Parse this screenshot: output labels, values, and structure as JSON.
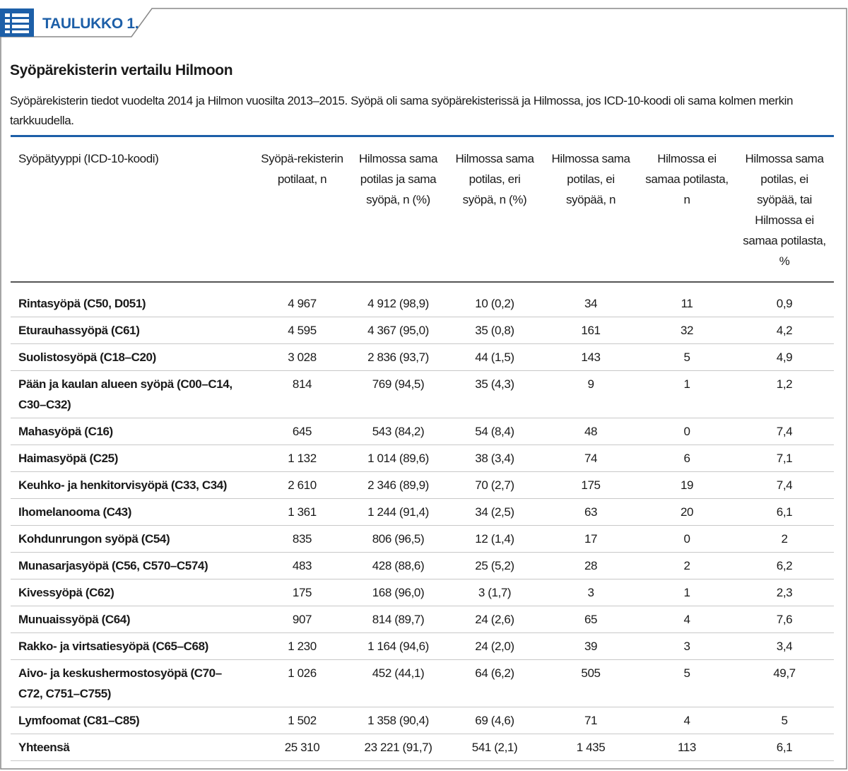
{
  "header": {
    "label": "TAULUKKO 1.",
    "title": "Syöpärekisterin vertailu Hilmoon",
    "description": "Syöpärekisterin tiedot vuodelta 2014 ja Hilmon vuosilta 2013–2015. Syöpä oli sama syöpärekisterissä ja Hilmossa, jos ICD-10-koodi oli sama kolmen merkin tarkkuudella."
  },
  "table": {
    "columns": [
      "Syöpätyyppi (ICD-10-koodi)",
      "Syöpä-rekisterin potilaat, n",
      "Hilmossa sama potilas ja sama syöpä, n (%)",
      "Hilmossa sama potilas, eri syöpä, n (%)",
      "Hilmossa sama potilas, ei syöpää, n",
      "Hilmossa ei samaa potilasta, n",
      "Hilmossa sama potilas, ei syöpää, tai Hilmossa ei samaa potilasta, %"
    ],
    "rows": [
      [
        "Rintasyöpä (C50, D051)",
        "4 967",
        "4 912 (98,9)",
        "10 (0,2)",
        "34",
        "11",
        "0,9"
      ],
      [
        "Eturauhassyöpä (C61)",
        "4 595",
        "4 367 (95,0)",
        "35 (0,8)",
        "161",
        "32",
        "4,2"
      ],
      [
        "Suolistosyöpä (C18–C20)",
        "3 028",
        "2 836 (93,7)",
        "44 (1,5)",
        "143",
        "5",
        "4,9"
      ],
      [
        "Pään ja kaulan alueen syöpä (C00–C14, C30–C32)",
        "814",
        "769 (94,5)",
        "35 (4,3)",
        "9",
        "1",
        "1,2"
      ],
      [
        "Mahasyöpä (C16)",
        "645",
        "543 (84,2)",
        "54 (8,4)",
        "48",
        "0",
        "7,4"
      ],
      [
        "Haimasyöpä (C25)",
        "1 132",
        "1 014 (89,6)",
        "38 (3,4)",
        "74",
        "6",
        "7,1"
      ],
      [
        "Keuhko- ja henkitorvisyöpä (C33, C34)",
        "2 610",
        "2 346 (89,9)",
        "70 (2,7)",
        "175",
        "19",
        "7,4"
      ],
      [
        "Ihomelanooma (C43)",
        "1 361",
        "1 244 (91,4)",
        "34 (2,5)",
        "63",
        "20",
        "6,1"
      ],
      [
        "Kohdunrungon syöpä (C54)",
        "835",
        "806 (96,5)",
        "12 (1,4)",
        "17",
        "0",
        "2"
      ],
      [
        "Munasarjasyöpä (C56, C570–C574)",
        "483",
        "428 (88,6)",
        "25 (5,2)",
        "28",
        "2",
        "6,2"
      ],
      [
        "Kivessyöpä (C62)",
        "175",
        "168 (96,0)",
        "3 (1,7)",
        "3",
        "1",
        "2,3"
      ],
      [
        "Munuaissyöpä (C64)",
        "907",
        "814 (89,7)",
        "24 (2,6)",
        "65",
        "4",
        "7,6"
      ],
      [
        "Rakko- ja virtsatiesyöpä (C65–C68)",
        "1 230",
        "1 164 (94,6)",
        "24 (2,0)",
        "39",
        "3",
        "3,4"
      ],
      [
        "Aivo- ja keskushermostosyöpä (C70–C72, C751–C755)",
        "1 026",
        "452 (44,1)",
        "64 (6,2)",
        "505",
        "5",
        "49,7"
      ],
      [
        "Lymfoomat (C81–C85)",
        "1 502",
        "1 358 (90,4)",
        "69 (4,6)",
        "71",
        "4",
        "5"
      ],
      [
        "Yhteensä",
        "25 310",
        "23 221 (91,7)",
        "541 (2,1)",
        "1 435",
        "113",
        "6,1"
      ]
    ]
  }
}
